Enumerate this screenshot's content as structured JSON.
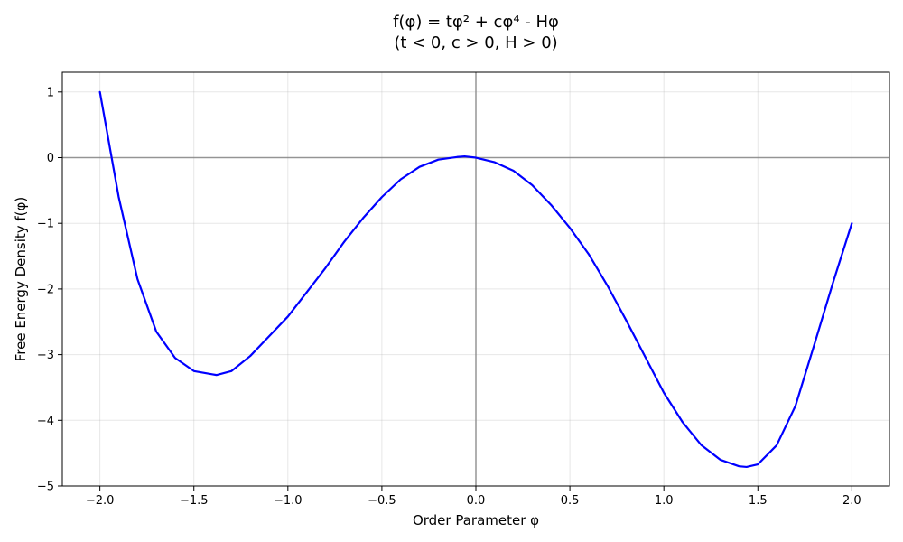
{
  "chart_data": {
    "type": "line",
    "title_line1": "f(φ) = tφ² + cφ⁴ - Hφ",
    "title_line2": "(t < 0, c > 0, H > 0)",
    "xlabel": "Order Parameter φ",
    "ylabel": "Free Energy Density f(φ)",
    "xlim": [
      -2.2,
      2.2
    ],
    "ylim": [
      -5,
      1.3
    ],
    "x_ticks": [
      -2.0,
      -1.5,
      -1.0,
      -0.5,
      0.0,
      0.5,
      1.0,
      1.5,
      2.0
    ],
    "x_tick_labels": [
      "−2.0",
      "−1.5",
      "−1.0",
      "−0.5",
      "0.0",
      "0.5",
      "1.0",
      "1.5",
      "2.0"
    ],
    "y_ticks": [
      1,
      0,
      -1,
      -2,
      -3,
      -4,
      -5
    ],
    "y_tick_labels": [
      "1",
      "0",
      "−1",
      "−2",
      "−3",
      "−4",
      "−5"
    ],
    "grid": true,
    "reference_lines": {
      "horizontal_y": 0,
      "vertical_x": 0
    },
    "series": [
      {
        "color": "#0000ff",
        "x": [
          -2.0,
          -1.9,
          -1.8,
          -1.7,
          -1.6,
          -1.5,
          -1.4,
          -1.38,
          -1.3,
          -1.2,
          -1.1,
          -1.0,
          -0.9,
          -0.8,
          -0.7,
          -0.6,
          -0.5,
          -0.4,
          -0.3,
          -0.2,
          -0.1,
          -0.06,
          0.0,
          0.1,
          0.2,
          0.3,
          0.4,
          0.5,
          0.6,
          0.7,
          0.8,
          0.9,
          1.0,
          1.1,
          1.2,
          1.3,
          1.4,
          1.44,
          1.5,
          1.6,
          1.7,
          1.8,
          1.9,
          2.0
        ],
        "y": [
          1.0,
          -0.6,
          -1.85,
          -2.65,
          -3.05,
          -3.25,
          -3.3,
          -3.31,
          -3.25,
          -3.02,
          -2.72,
          -2.42,
          -2.05,
          -1.68,
          -1.28,
          -0.92,
          -0.6,
          -0.33,
          -0.14,
          -0.03,
          0.01,
          0.02,
          0.0,
          -0.07,
          -0.2,
          -0.42,
          -0.72,
          -1.07,
          -1.47,
          -1.95,
          -2.48,
          -3.03,
          -3.58,
          -4.03,
          -4.38,
          -4.6,
          -4.7,
          -4.71,
          -4.67,
          -4.38,
          -3.78,
          -2.85,
          -1.9,
          -1.0
        ]
      }
    ]
  }
}
